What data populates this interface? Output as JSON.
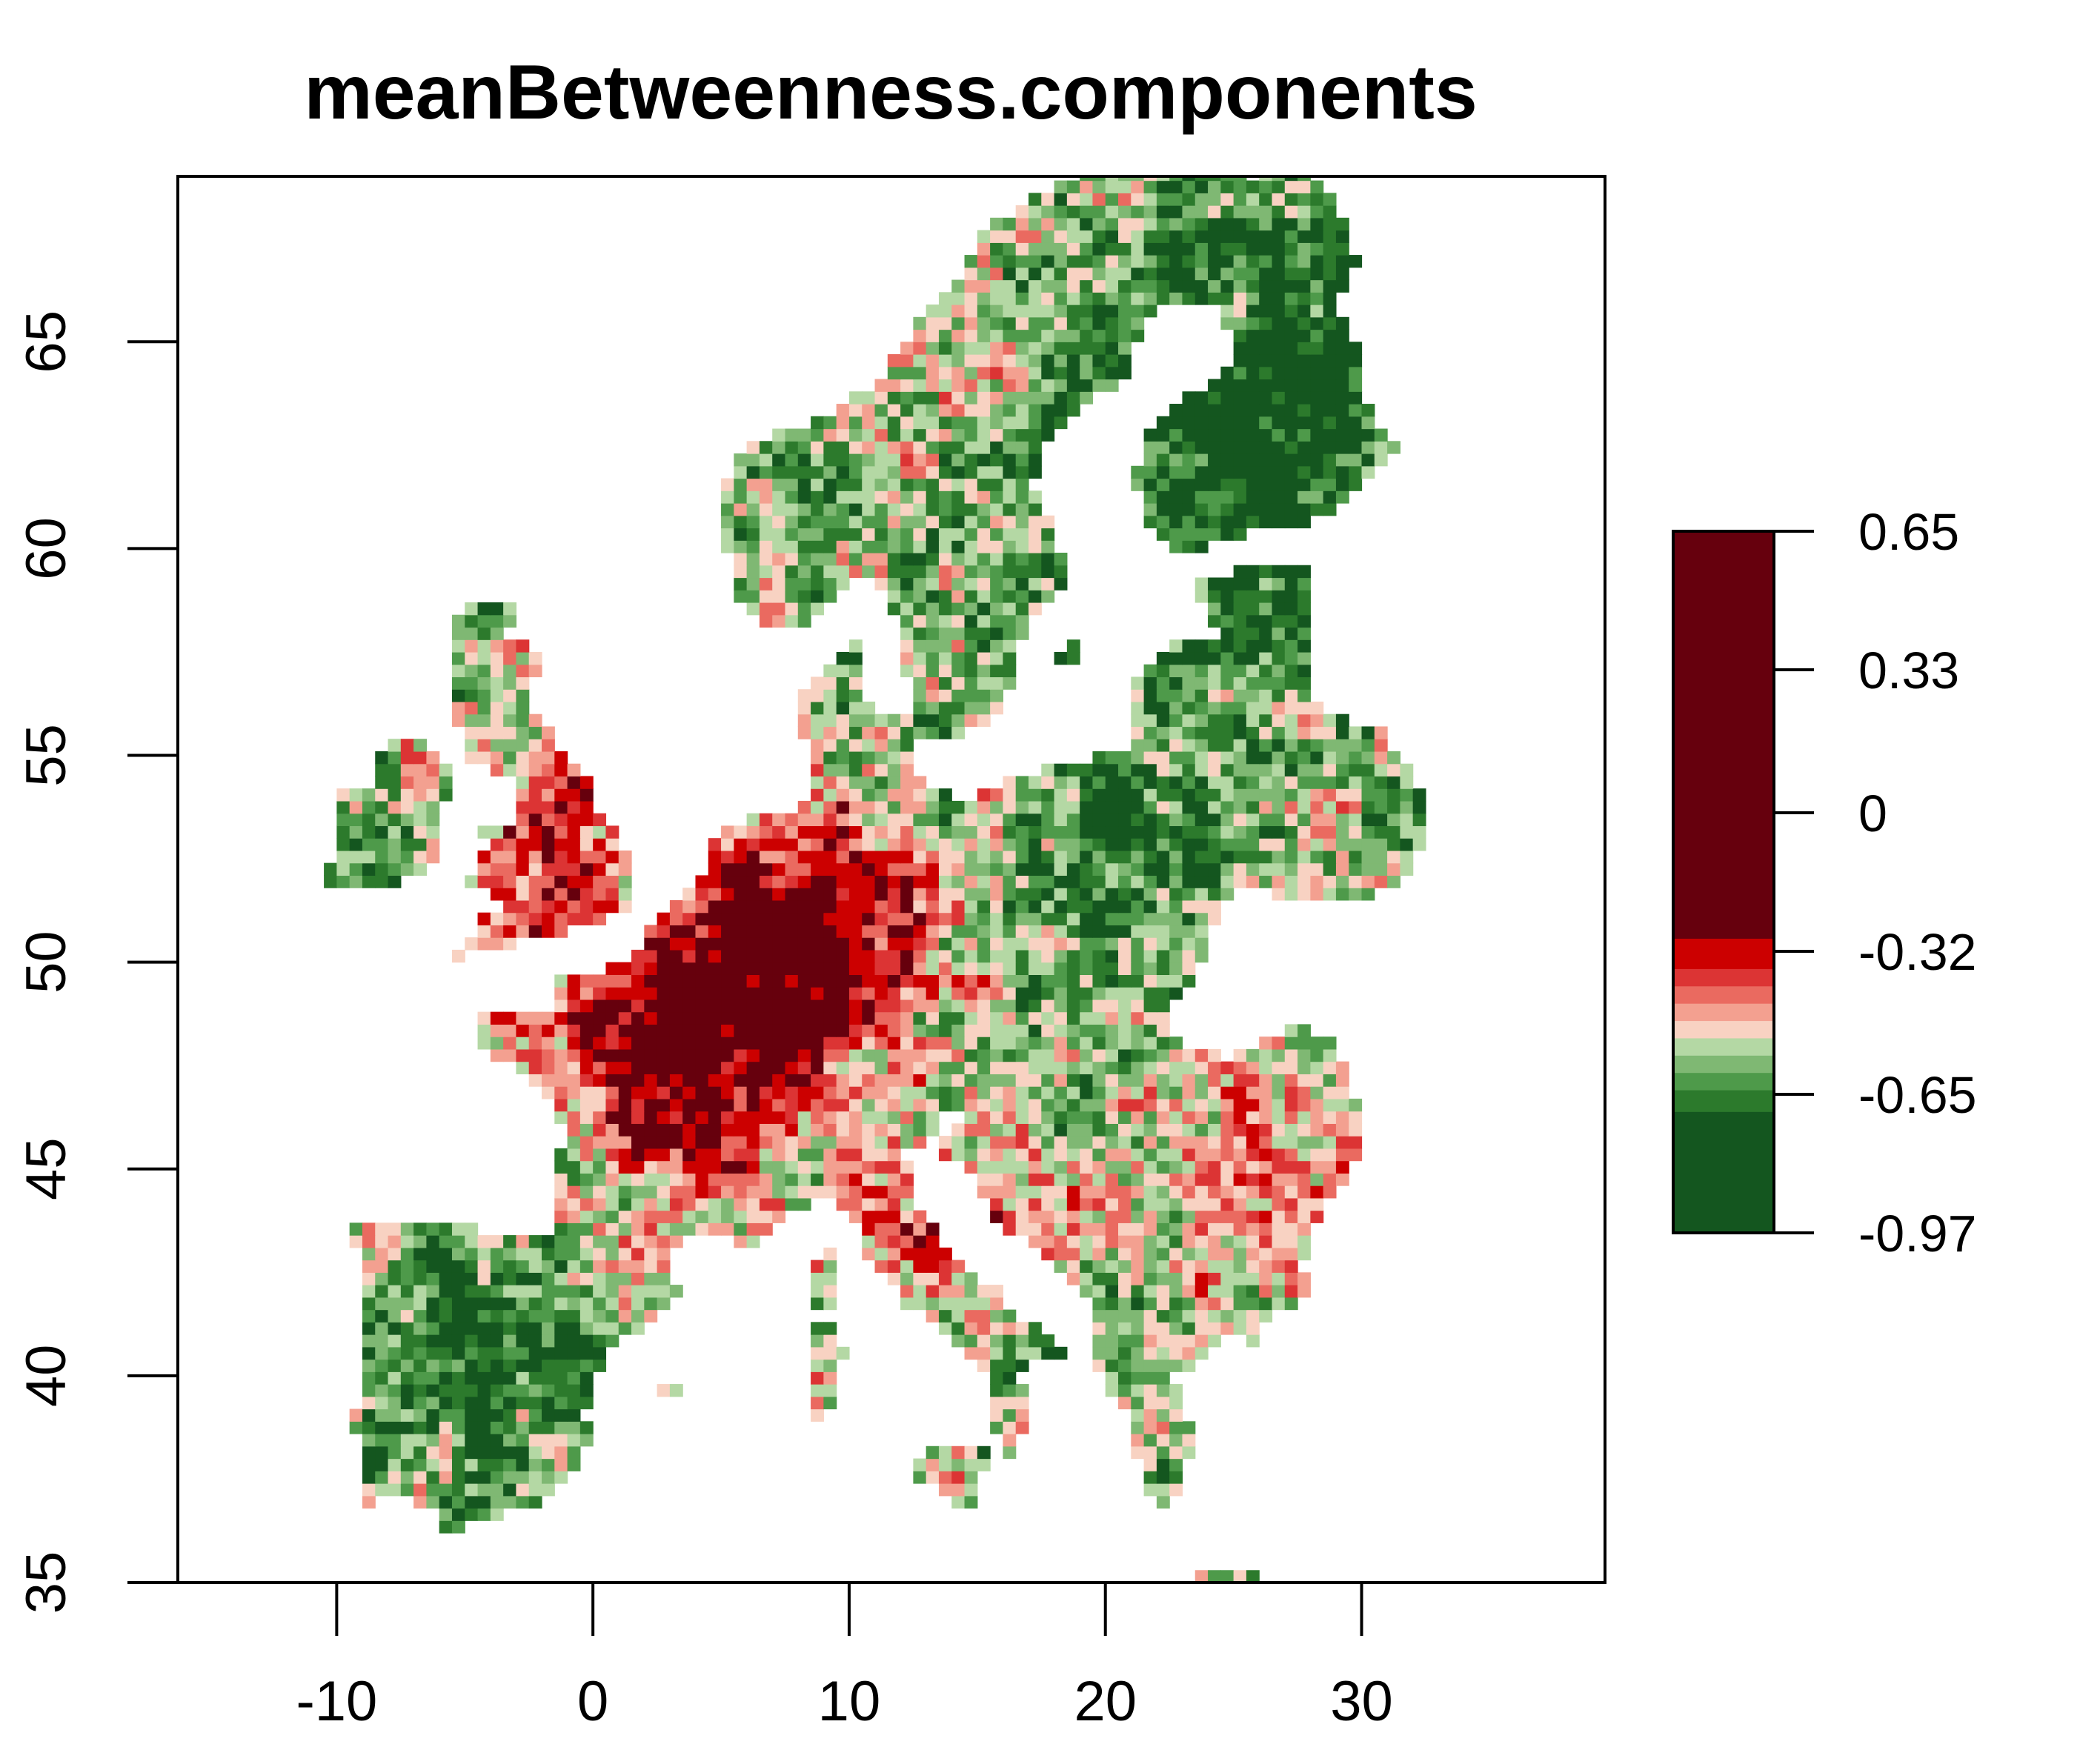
{
  "title": "meanBetweenness.components",
  "x_axis": {
    "ticks": [
      -10,
      0,
      10,
      20,
      30
    ],
    "tick_labels": [
      "-10",
      "0",
      "10",
      "20",
      "30"
    ],
    "range": [
      -16.2,
      39.5
    ]
  },
  "y_axis": {
    "ticks": [
      35,
      40,
      45,
      50,
      55,
      60,
      65
    ],
    "tick_labels": [
      "35",
      "40",
      "45",
      "50",
      "55",
      "60",
      "65"
    ],
    "range": [
      35,
      69
    ]
  },
  "legend": {
    "placement": "right",
    "ticks": [
      0.65,
      0.33,
      0,
      -0.32,
      -0.65,
      -0.97
    ],
    "tick_labels": [
      "0.65",
      "0.33",
      "0",
      "-0.32",
      "-0.65",
      "-0.97"
    ],
    "range": [
      -0.97,
      0.65
    ],
    "bands": [
      {
        "from": -0.97,
        "to": -0.69,
        "color": "#14561f"
      },
      {
        "from": -0.69,
        "to": -0.64,
        "color": "#2c7a2c"
      },
      {
        "from": -0.64,
        "to": -0.6,
        "color": "#4e9a4a"
      },
      {
        "from": -0.6,
        "to": -0.56,
        "color": "#7fb873"
      },
      {
        "from": -0.56,
        "to": -0.52,
        "color": "#b4d8a4"
      },
      {
        "from": -0.52,
        "to": -0.48,
        "color": "#f8d2c2"
      },
      {
        "from": -0.48,
        "to": -0.44,
        "color": "#f3a090"
      },
      {
        "from": -0.44,
        "to": -0.4,
        "color": "#ea6a60"
      },
      {
        "from": -0.4,
        "to": -0.36,
        "color": "#dc3434"
      },
      {
        "from": -0.36,
        "to": -0.29,
        "color": "#cc0000"
      },
      {
        "from": -0.29,
        "to": 0.65,
        "color": "#66000d"
      }
    ]
  }
}
